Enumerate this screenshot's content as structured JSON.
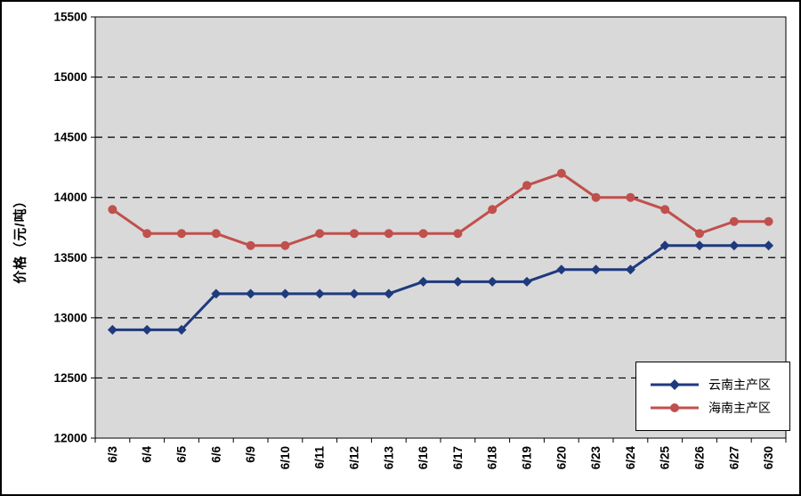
{
  "chart_data": {
    "type": "line",
    "title": "",
    "xlabel": "",
    "ylabel": "价格（元/吨）",
    "ylim": [
      12000,
      15500
    ],
    "ytick_step": 500,
    "yticks": [
      12000,
      12500,
      13000,
      13500,
      14000,
      14500,
      15000,
      15500
    ],
    "grid": "horizontal-dashed",
    "plot_bg": "#d9d9d9",
    "axis_color": "#000000",
    "legend_position": "inside-bottom-right",
    "categories": [
      "6/3",
      "6/4",
      "6/5",
      "6/6",
      "6/9",
      "6/10",
      "6/11",
      "6/12",
      "6/13",
      "6/16",
      "6/17",
      "6/18",
      "6/19",
      "6/20",
      "6/23",
      "6/24",
      "6/25",
      "6/26",
      "6/27",
      "6/30"
    ],
    "series": [
      {
        "name": "云南主产区",
        "color": "#1f3a7d",
        "marker": "diamond",
        "values": [
          12900,
          12900,
          12900,
          13200,
          13200,
          13200,
          13200,
          13200,
          13200,
          13300,
          13300,
          13300,
          13300,
          13400,
          13400,
          13400,
          13600,
          13600,
          13600,
          13600
        ]
      },
      {
        "name": "海南主产区",
        "color": "#c0504d",
        "marker": "circle",
        "values": [
          13900,
          13700,
          13700,
          13700,
          13600,
          13600,
          13700,
          13700,
          13700,
          13700,
          13700,
          13900,
          14100,
          14200,
          14000,
          14000,
          13900,
          13700,
          13800,
          13800
        ]
      }
    ]
  }
}
